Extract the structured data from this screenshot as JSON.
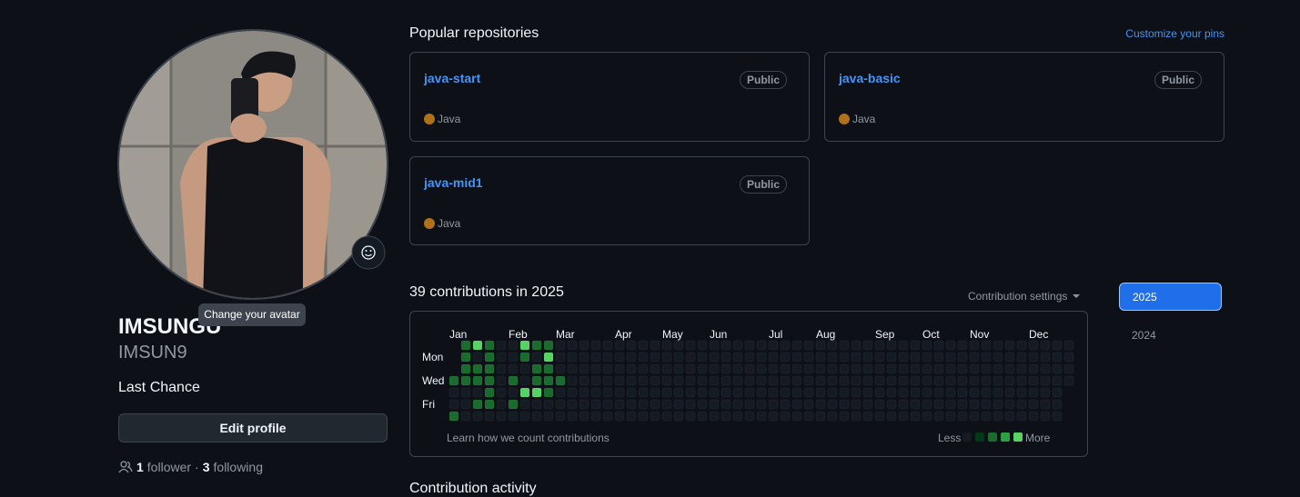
{
  "profile": {
    "name": "IMSUNGU",
    "login": "IMSUN9",
    "bio": "Last Chance",
    "edit_button": "Edit profile",
    "avatar_tooltip": "Change your avatar",
    "followers": {
      "count": 1,
      "label": "follower"
    },
    "separator": "·",
    "following": {
      "count": 3,
      "label": "following"
    }
  },
  "pinned": {
    "title": "Popular repositories",
    "action": "Customize your pins",
    "repos": [
      {
        "name": "java-start",
        "visibility": "Public",
        "language": "Java",
        "language_color": "#b07219"
      },
      {
        "name": "java-basic",
        "visibility": "Public",
        "language": "Java",
        "language_color": "#b07219"
      },
      {
        "name": "java-mid1",
        "visibility": "Public",
        "language": "Java",
        "language_color": "#b07219"
      }
    ]
  },
  "contributions": {
    "title": "39 contributions in 2025",
    "settings": "Contribution settings",
    "months": [
      "Jan",
      "Feb",
      "Mar",
      "Apr",
      "May",
      "Jun",
      "Jul",
      "Aug",
      "Sep",
      "Oct",
      "Nov",
      "Dec"
    ],
    "days": [
      "Mon",
      "Wed",
      "Fri"
    ],
    "level_colors": [
      "#151b23",
      "#033a16",
      "#196c2e",
      "#2ea043",
      "#56d364"
    ],
    "weeks": [
      [
        null,
        null,
        null,
        2,
        0,
        0,
        2
      ],
      [
        2,
        2,
        2,
        2,
        0,
        0,
        0
      ],
      [
        4,
        0,
        2,
        2,
        0,
        2,
        0
      ],
      [
        2,
        2,
        2,
        2,
        2,
        2,
        0
      ],
      [
        0,
        0,
        0,
        0,
        0,
        0,
        0
      ],
      [
        0,
        0,
        0,
        2,
        0,
        2,
        0
      ],
      [
        4,
        2,
        0,
        0,
        4,
        0,
        0
      ],
      [
        2,
        0,
        2,
        2,
        4,
        0,
        0
      ],
      [
        2,
        4,
        2,
        2,
        2,
        0,
        0
      ],
      [
        0,
        0,
        0,
        2,
        0,
        0,
        0
      ],
      [
        0,
        0,
        0,
        0,
        0,
        0,
        0
      ],
      [
        0,
        0,
        0,
        0,
        0,
        0,
        0
      ],
      [
        0,
        0,
        0,
        0,
        0,
        0,
        0
      ],
      [
        0,
        0,
        0,
        0,
        0,
        0,
        0
      ],
      [
        0,
        0,
        0,
        0,
        0,
        0,
        0
      ],
      [
        0,
        0,
        0,
        0,
        0,
        0,
        0
      ],
      [
        0,
        0,
        0,
        0,
        0,
        0,
        0
      ],
      [
        0,
        0,
        0,
        0,
        0,
        0,
        0
      ],
      [
        0,
        0,
        0,
        0,
        0,
        0,
        0
      ],
      [
        0,
        0,
        0,
        0,
        0,
        0,
        0
      ],
      [
        0,
        0,
        0,
        0,
        0,
        0,
        0
      ],
      [
        0,
        0,
        0,
        0,
        0,
        0,
        0
      ],
      [
        0,
        0,
        0,
        0,
        0,
        0,
        0
      ],
      [
        0,
        0,
        0,
        0,
        0,
        0,
        0
      ],
      [
        0,
        0,
        0,
        0,
        0,
        0,
        0
      ],
      [
        0,
        0,
        0,
        0,
        0,
        0,
        0
      ],
      [
        0,
        0,
        0,
        0,
        0,
        0,
        0
      ],
      [
        0,
        0,
        0,
        0,
        0,
        0,
        0
      ],
      [
        0,
        0,
        0,
        0,
        0,
        0,
        0
      ],
      [
        0,
        0,
        0,
        0,
        0,
        0,
        0
      ],
      [
        0,
        0,
        0,
        0,
        0,
        0,
        0
      ],
      [
        0,
        0,
        0,
        0,
        0,
        0,
        0
      ],
      [
        0,
        0,
        0,
        0,
        0,
        0,
        0
      ],
      [
        0,
        0,
        0,
        0,
        0,
        0,
        0
      ],
      [
        0,
        0,
        0,
        0,
        0,
        0,
        0
      ],
      [
        0,
        0,
        0,
        0,
        0,
        0,
        0
      ],
      [
        0,
        0,
        0,
        0,
        0,
        0,
        0
      ],
      [
        0,
        0,
        0,
        0,
        0,
        0,
        0
      ],
      [
        0,
        0,
        0,
        0,
        0,
        0,
        0
      ],
      [
        0,
        0,
        0,
        0,
        0,
        0,
        0
      ],
      [
        0,
        0,
        0,
        0,
        0,
        0,
        0
      ],
      [
        0,
        0,
        0,
        0,
        0,
        0,
        0
      ],
      [
        0,
        0,
        0,
        0,
        0,
        0,
        0
      ],
      [
        0,
        0,
        0,
        0,
        0,
        0,
        0
      ],
      [
        0,
        0,
        0,
        0,
        0,
        0,
        0
      ],
      [
        0,
        0,
        0,
        0,
        0,
        0,
        0
      ],
      [
        0,
        0,
        0,
        0,
        0,
        0,
        0
      ],
      [
        0,
        0,
        0,
        0,
        0,
        0,
        0
      ],
      [
        0,
        0,
        0,
        0,
        0,
        0,
        0
      ],
      [
        0,
        0,
        0,
        0,
        0,
        0,
        0
      ],
      [
        0,
        0,
        0,
        0,
        0,
        0,
        0
      ],
      [
        0,
        0,
        0,
        0,
        0,
        0,
        0
      ],
      [
        0,
        0,
        0,
        0,
        null,
        null,
        null
      ]
    ],
    "footer_link": "Learn how we count contributions",
    "legend_less": "Less",
    "legend_more": "More"
  },
  "years": [
    {
      "label": "2025",
      "selected": true
    },
    {
      "label": "2024",
      "selected": false
    }
  ],
  "activity_title": "Contribution activity"
}
